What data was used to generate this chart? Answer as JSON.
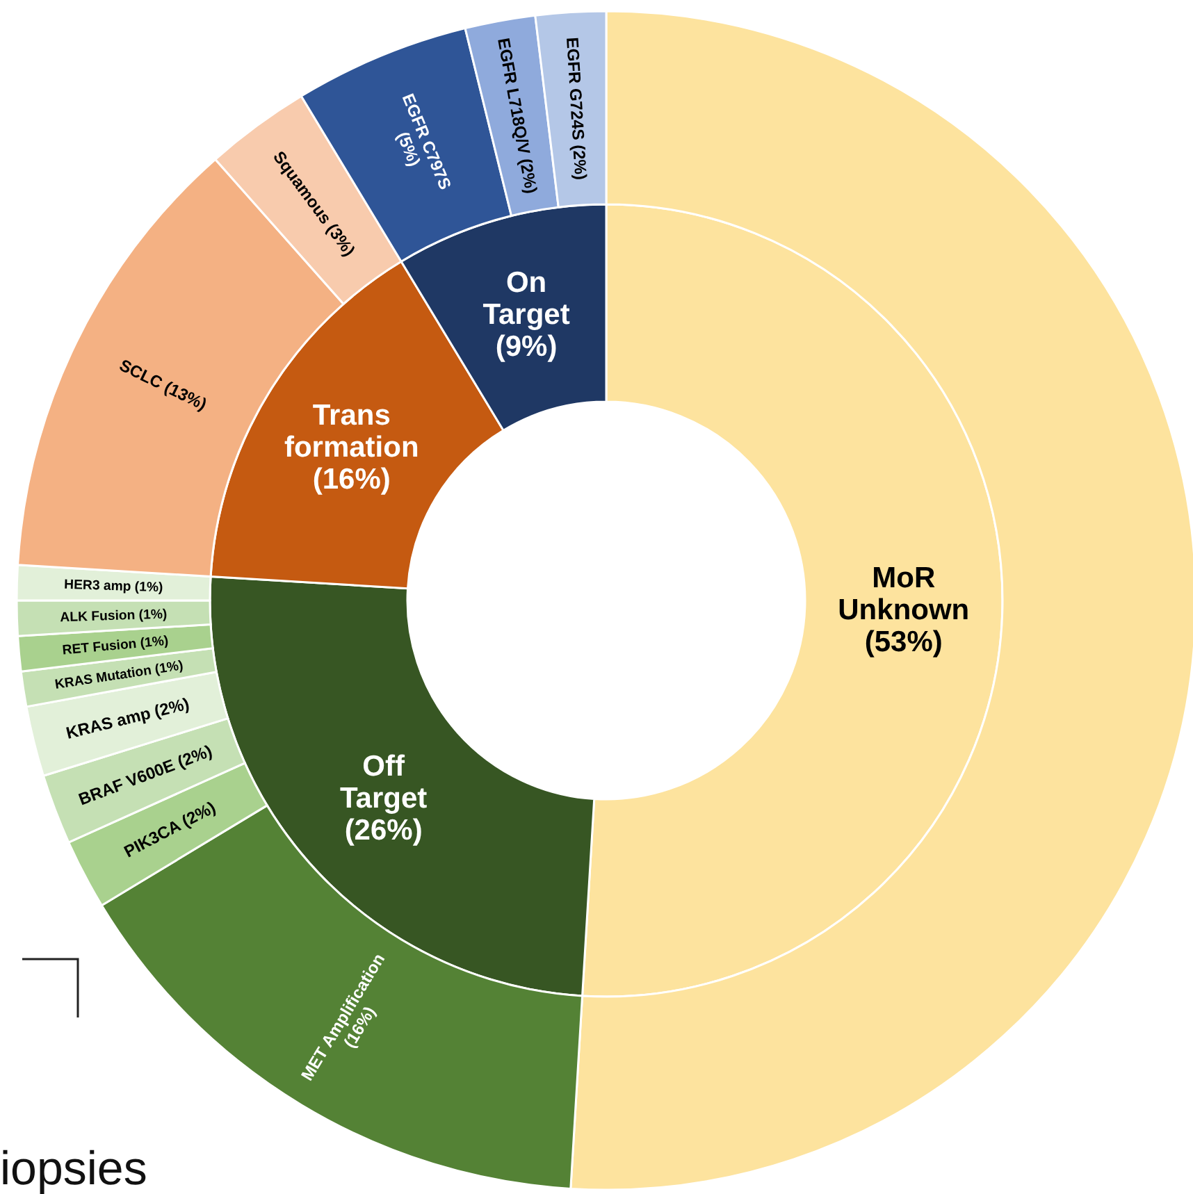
{
  "chart_data": [
    {
      "type": "donut",
      "categories": [
        "MoR Unknown",
        "Off Target",
        "Trans formation",
        "On Target"
      ],
      "values": [
        53,
        26,
        16,
        9
      ],
      "value_labels": [
        "(53%)",
        "(26%)",
        "(16%)",
        "(9%)"
      ],
      "colors": [
        "#fde39e",
        "#375623",
        "#c55a11",
        "#1f3864"
      ]
    },
    {
      "type": "donut",
      "categories": [
        null,
        "MET Amplification",
        "PIK3CA",
        "BRAF V600E",
        "KRAS amp",
        "KRAS Mutation",
        "RET Fusion",
        "ALK Fusion",
        "HER3 amp",
        "SCLC",
        "Squamous",
        "EGFR C797S",
        "EGFR L718Q/V",
        "EGFR G724S"
      ],
      "values": [
        53,
        16,
        2,
        2,
        2,
        1,
        1,
        1,
        1,
        13,
        3,
        5,
        2,
        2
      ],
      "value_labels": [
        null,
        "(16%)",
        "(2%)",
        "(2%)",
        "(2%)",
        "(1%)",
        "(1%)",
        "(1%)",
        "(1%)",
        "(13%)",
        "(3%)",
        "(5%)",
        "(2%)",
        "(2%)"
      ],
      "colors": [
        "#fde39e",
        "#548235",
        "#a9d18e",
        "#c5e0b4",
        "#e2f0d9",
        "#c5e0b4",
        "#a9d18e",
        "#c5e0b4",
        "#e2f0d9",
        "#f4b183",
        "#f8cbad",
        "#2f5597",
        "#8faadc",
        "#b4c7e7"
      ],
      "annotations": [
        "iopsies"
      ]
    }
  ]
}
